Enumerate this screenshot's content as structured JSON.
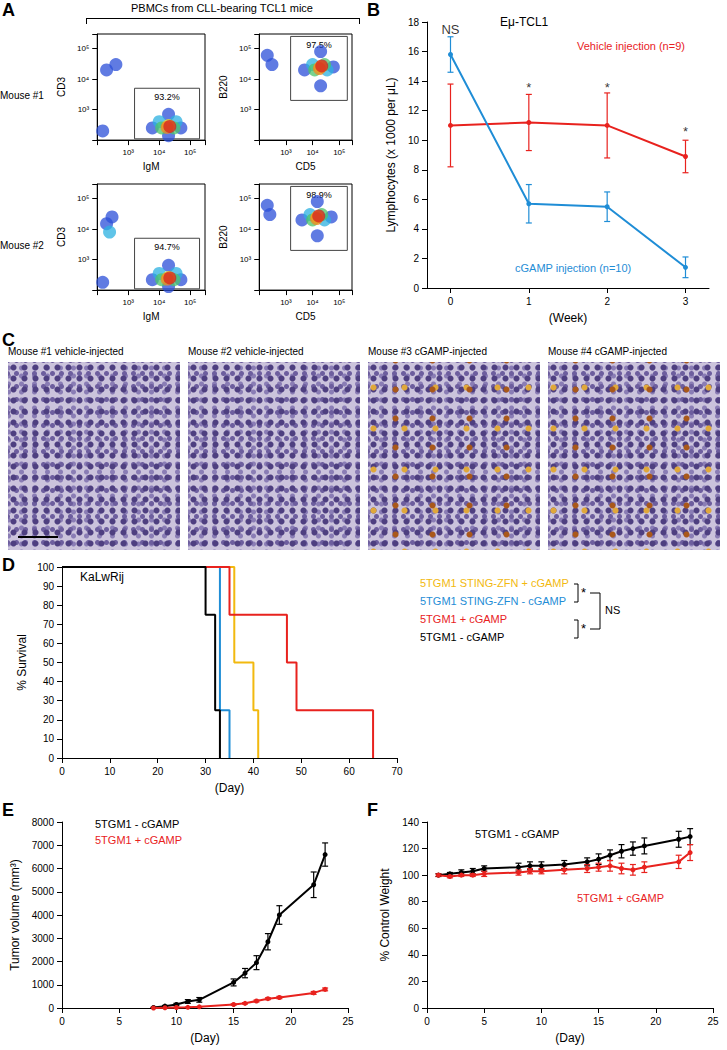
{
  "panel_A": {
    "panel_label": "A",
    "header": "PBMCs from CLL-bearing TCL1 mice",
    "rows": [
      "Mouse #1",
      "Mouse #2"
    ]
  },
  "panel_C": {
    "panel_label": "C",
    "images": [
      "Mouse #1 vehicle-injected",
      "Mouse #2 vehicle-injected",
      "Mouse #3 cGAMP-injected",
      "Mouse #4 cGAMP-injected"
    ]
  },
  "chart_data": [
    {
      "type": "scatter",
      "xlabel": "IgM",
      "ylabel": "CD3",
      "log": true,
      "grid": false,
      "xlim": [
        100,
        300000
      ],
      "ylim": [
        100,
        300000
      ],
      "xticks": [
        {
          "value": 1000,
          "label": "10³"
        },
        {
          "value": 10000,
          "label": "10⁴"
        },
        {
          "value": 100000,
          "label": "10⁵"
        }
      ],
      "yticks": [
        {
          "value": 1000,
          "label": "10³"
        },
        {
          "value": 10000,
          "label": "10⁴"
        },
        {
          "value": 100000,
          "label": "10⁵"
        }
      ],
      "points": [
        [
          6000,
          250
        ],
        [
          50000,
          250
        ],
        [
          20000,
          700
        ],
        [
          20000,
          140
        ],
        [
          10000,
          400
        ],
        [
          35000,
          400
        ],
        [
          12000,
          250
        ],
        [
          30000,
          250
        ],
        [
          20000,
          300
        ],
        [
          18000,
          260
        ],
        [
          22000,
          280
        ],
        [
          200,
          20000
        ],
        [
          400,
          30000
        ],
        [
          150,
          200
        ]
      ],
      "colors": [
        "#2b4fd8",
        "#2b4fd8",
        "#2b4fd8",
        "#2b4fd8",
        "#2bb0e0",
        "#2bb0e0",
        "#4cc46a",
        "#4cc46a",
        "#e8d820",
        "#f08a20",
        "#d62020",
        "#2b4fd8",
        "#2b4fd8",
        "#2b4fd8"
      ],
      "gate": {
        "x": [
          1600,
          200000
        ],
        "y": [
          110,
          5000
        ],
        "label": "93.2%"
      }
    },
    {
      "type": "scatter",
      "xlabel": "CD5",
      "ylabel": "B220",
      "log": true,
      "grid": false,
      "xlim": [
        100,
        300000
      ],
      "ylim": [
        100,
        300000
      ],
      "xticks": [
        {
          "value": 1000,
          "label": "10³"
        },
        {
          "value": 10000,
          "label": "10⁴"
        },
        {
          "value": 100000,
          "label": "10⁵"
        }
      ],
      "yticks": [
        {
          "value": 1000,
          "label": "10³"
        },
        {
          "value": 10000,
          "label": "10⁴"
        },
        {
          "value": 100000,
          "label": "10⁵"
        }
      ],
      "points": [
        [
          5000,
          20000
        ],
        [
          60000,
          25000
        ],
        [
          20000,
          80000
        ],
        [
          20000,
          6000
        ],
        [
          10000,
          30000
        ],
        [
          35000,
          20000
        ],
        [
          12000,
          20000
        ],
        [
          28000,
          30000
        ],
        [
          20000,
          25000
        ],
        [
          18000,
          22000
        ],
        [
          22000,
          27000
        ],
        [
          200,
          60000
        ],
        [
          300,
          30000
        ]
      ],
      "colors": [
        "#2b4fd8",
        "#2b4fd8",
        "#2b4fd8",
        "#2b4fd8",
        "#2bb0e0",
        "#2bb0e0",
        "#4cc46a",
        "#4cc46a",
        "#e8d820",
        "#f08a20",
        "#d62020",
        "#2b4fd8",
        "#2b4fd8"
      ],
      "gate": {
        "x": [
          1500,
          200000
        ],
        "y": [
          2000,
          250000
        ],
        "label": "97.5%"
      }
    },
    {
      "type": "scatter",
      "xlabel": "IgM",
      "ylabel": "CD3",
      "log": true,
      "grid": false,
      "xlim": [
        100,
        300000
      ],
      "ylim": [
        100,
        300000
      ],
      "xticks": [
        {
          "value": 1000,
          "label": "10³"
        },
        {
          "value": 10000,
          "label": "10⁴"
        },
        {
          "value": 100000,
          "label": "10⁵"
        }
      ],
      "yticks": [
        {
          "value": 1000,
          "label": "10³"
        },
        {
          "value": 10000,
          "label": "10⁴"
        },
        {
          "value": 100000,
          "label": "10⁵"
        }
      ],
      "points": [
        [
          6000,
          220
        ],
        [
          50000,
          220
        ],
        [
          20000,
          650
        ],
        [
          20000,
          130
        ],
        [
          10000,
          350
        ],
        [
          35000,
          350
        ],
        [
          12000,
          220
        ],
        [
          30000,
          220
        ],
        [
          20000,
          260
        ],
        [
          18000,
          230
        ],
        [
          22000,
          250
        ],
        [
          200,
          15000
        ],
        [
          300,
          25000
        ],
        [
          250,
          8000
        ],
        [
          150,
          180
        ]
      ],
      "colors": [
        "#2b4fd8",
        "#2b4fd8",
        "#2b4fd8",
        "#2b4fd8",
        "#2bb0e0",
        "#2bb0e0",
        "#4cc46a",
        "#4cc46a",
        "#e8d820",
        "#f08a20",
        "#d62020",
        "#2b4fd8",
        "#2b4fd8",
        "#2bb0e0",
        "#2b4fd8"
      ],
      "gate": {
        "x": [
          1600,
          200000
        ],
        "y": [
          110,
          5000
        ],
        "label": "94.7%"
      }
    },
    {
      "type": "scatter",
      "xlabel": "CD5",
      "ylabel": "B220",
      "log": true,
      "grid": false,
      "xlim": [
        100,
        300000
      ],
      "ylim": [
        100,
        300000
      ],
      "xticks": [
        {
          "value": 1000,
          "label": "10³"
        },
        {
          "value": 10000,
          "label": "10⁴"
        },
        {
          "value": 100000,
          "label": "10⁵"
        }
      ],
      "yticks": [
        {
          "value": 1000,
          "label": "10³"
        },
        {
          "value": 10000,
          "label": "10⁴"
        },
        {
          "value": 100000,
          "label": "10⁵"
        }
      ],
      "points": [
        [
          4000,
          20000
        ],
        [
          50000,
          25000
        ],
        [
          15000,
          80000
        ],
        [
          15000,
          6000
        ],
        [
          8000,
          30000
        ],
        [
          28000,
          20000
        ],
        [
          10000,
          20000
        ],
        [
          22000,
          30000
        ],
        [
          15000,
          25000
        ],
        [
          14000,
          22000
        ],
        [
          17000,
          27000
        ],
        [
          200,
          60000
        ],
        [
          250,
          30000
        ]
      ],
      "colors": [
        "#2b4fd8",
        "#2b4fd8",
        "#2b4fd8",
        "#2b4fd8",
        "#2bb0e0",
        "#2bb0e0",
        "#4cc46a",
        "#4cc46a",
        "#e8d820",
        "#f08a20",
        "#d62020",
        "#2b4fd8",
        "#2b4fd8"
      ],
      "gate": {
        "x": [
          1500,
          200000
        ],
        "y": [
          2000,
          250000
        ],
        "label": "98.9%"
      }
    },
    {
      "type": "line",
      "panel_label": "B",
      "title": "Eμ-TCL1",
      "xlabel": "(Week)",
      "ylabel": "Lymphocytes (x 1000 per μL)",
      "grid": false,
      "x": [
        0,
        1,
        2,
        3
      ],
      "xlim": [
        -0.3,
        3.3
      ],
      "xticks": [
        0,
        1,
        2,
        3
      ],
      "ylim": [
        0,
        18
      ],
      "yticks": [
        0,
        2,
        4,
        6,
        8,
        10,
        12,
        14,
        16,
        18
      ],
      "series": [
        {
          "name": "Vehicle injection (n=9)",
          "color": "#e8221e",
          "marker": "circle",
          "values": [
            11,
            11.2,
            11,
            8.9
          ],
          "errors": [
            2.8,
            1.9,
            2.2,
            1.1
          ]
        },
        {
          "name": "cGAMP injection (n=10)",
          "color": "#1f8dd6",
          "marker": "circle",
          "values": [
            15.8,
            5.7,
            5.5,
            1.4
          ],
          "errors": [
            1.2,
            1.3,
            1.0,
            0.7
          ]
        }
      ],
      "annotations": [
        {
          "x": 0,
          "y": 17.5,
          "text": "NS"
        },
        {
          "x": 1,
          "y": 13.6,
          "text": "*"
        },
        {
          "x": 2,
          "y": 13.6,
          "text": "*"
        },
        {
          "x": 3,
          "y": 10.6,
          "text": "*"
        }
      ]
    },
    {
      "type": "step",
      "panel_label": "D",
      "title": "KaLwRij",
      "xlabel": "(Day)",
      "ylabel": "% Survival",
      "grid": false,
      "xlim": [
        0,
        70
      ],
      "xticks": [
        0,
        10,
        20,
        30,
        40,
        50,
        60,
        70
      ],
      "ylim": [
        0,
        100
      ],
      "yticks": [
        0,
        10,
        20,
        30,
        40,
        50,
        60,
        70,
        80,
        90,
        100
      ],
      "series": [
        {
          "name": "5TGM1 STING-ZFN + cGAMP",
          "color": "#f2b90f",
          "x": [
            0,
            36,
            40,
            41
          ],
          "values": [
            100,
            50,
            25,
            0
          ]
        },
        {
          "name": "5TGM1 STING-ZFN - cGAMP",
          "color": "#1f8dd6",
          "x": [
            0,
            33,
            35
          ],
          "values": [
            100,
            25,
            0
          ]
        },
        {
          "name": "5TGM1 + cGAMP",
          "color": "#e8221e",
          "x": [
            0,
            35,
            47,
            49,
            65
          ],
          "values": [
            100,
            75,
            50,
            25,
            0
          ]
        },
        {
          "name": "5TGM1 - cGAMP",
          "color": "#000000",
          "x": [
            0,
            30,
            32,
            33
          ],
          "values": [
            100,
            75,
            25,
            0
          ]
        }
      ],
      "annotations": [
        {
          "text": "*"
        },
        {
          "text": "*"
        },
        {
          "text": "NS"
        }
      ]
    },
    {
      "type": "line",
      "panel_label": "E",
      "xlabel": "(Day)",
      "ylabel": "Tumor volume (mm³)",
      "grid": false,
      "x": [
        8,
        9,
        10,
        11,
        12,
        15,
        16,
        17,
        18,
        19,
        22,
        23
      ],
      "xlim": [
        0,
        25
      ],
      "xticks": [
        0,
        5,
        10,
        15,
        20,
        25
      ],
      "ylim": [
        0,
        8000
      ],
      "yticks": [
        0,
        1000,
        2000,
        3000,
        4000,
        5000,
        6000,
        7000,
        8000
      ],
      "series": [
        {
          "name": "5TGM1 - cGAMP",
          "color": "#000000",
          "marker": "circle",
          "values": [
            20,
            80,
            150,
            280,
            350,
            1100,
            1500,
            1950,
            2850,
            4000,
            5300,
            6600
          ],
          "errors": [
            10,
            30,
            50,
            80,
            100,
            150,
            200,
            300,
            350,
            400,
            550,
            500
          ]
        },
        {
          "name": "5TGM1 + cGAMP",
          "color": "#e8221e",
          "marker": "circle",
          "values": [
            0,
            10,
            20,
            30,
            50,
            150,
            200,
            300,
            400,
            450,
            650,
            800
          ],
          "errors": [
            0,
            5,
            10,
            10,
            15,
            30,
            30,
            40,
            40,
            50,
            60,
            60
          ]
        }
      ]
    },
    {
      "type": "line",
      "panel_label": "F",
      "xlabel": "(Day)",
      "ylabel": "% Control Weight",
      "grid": false,
      "x": [
        1,
        2,
        3,
        4,
        5,
        8,
        9,
        10,
        12,
        14,
        15,
        16,
        17,
        18,
        19,
        22,
        23
      ],
      "xlim": [
        0,
        25
      ],
      "xticks": [
        0,
        5,
        10,
        15,
        20,
        25
      ],
      "ylim": [
        0,
        140
      ],
      "yticks": [
        0,
        20,
        40,
        60,
        80,
        100,
        120,
        140
      ],
      "series": [
        {
          "name": "5TGM1 - cGAMP",
          "color": "#000000",
          "marker": "circle",
          "values": [
            100,
            101,
            102,
            103,
            105,
            106,
            107,
            107,
            108,
            110,
            112,
            115,
            118,
            120,
            122,
            127,
            129
          ],
          "errors": [
            1,
            1,
            2,
            2,
            2,
            3,
            3,
            3,
            3,
            3,
            4,
            4,
            5,
            5,
            6,
            6,
            6
          ]
        },
        {
          "name": "5TGM1 + cGAMP",
          "color": "#e8221e",
          "marker": "circle",
          "values": [
            100,
            99,
            100,
            100,
            101,
            102,
            103,
            103,
            104,
            105,
            106,
            107,
            105,
            104,
            106,
            110,
            117
          ],
          "errors": [
            1,
            1,
            1,
            1,
            2,
            2,
            2,
            2,
            3,
            3,
            3,
            4,
            4,
            4,
            4,
            5,
            6
          ]
        }
      ]
    }
  ]
}
